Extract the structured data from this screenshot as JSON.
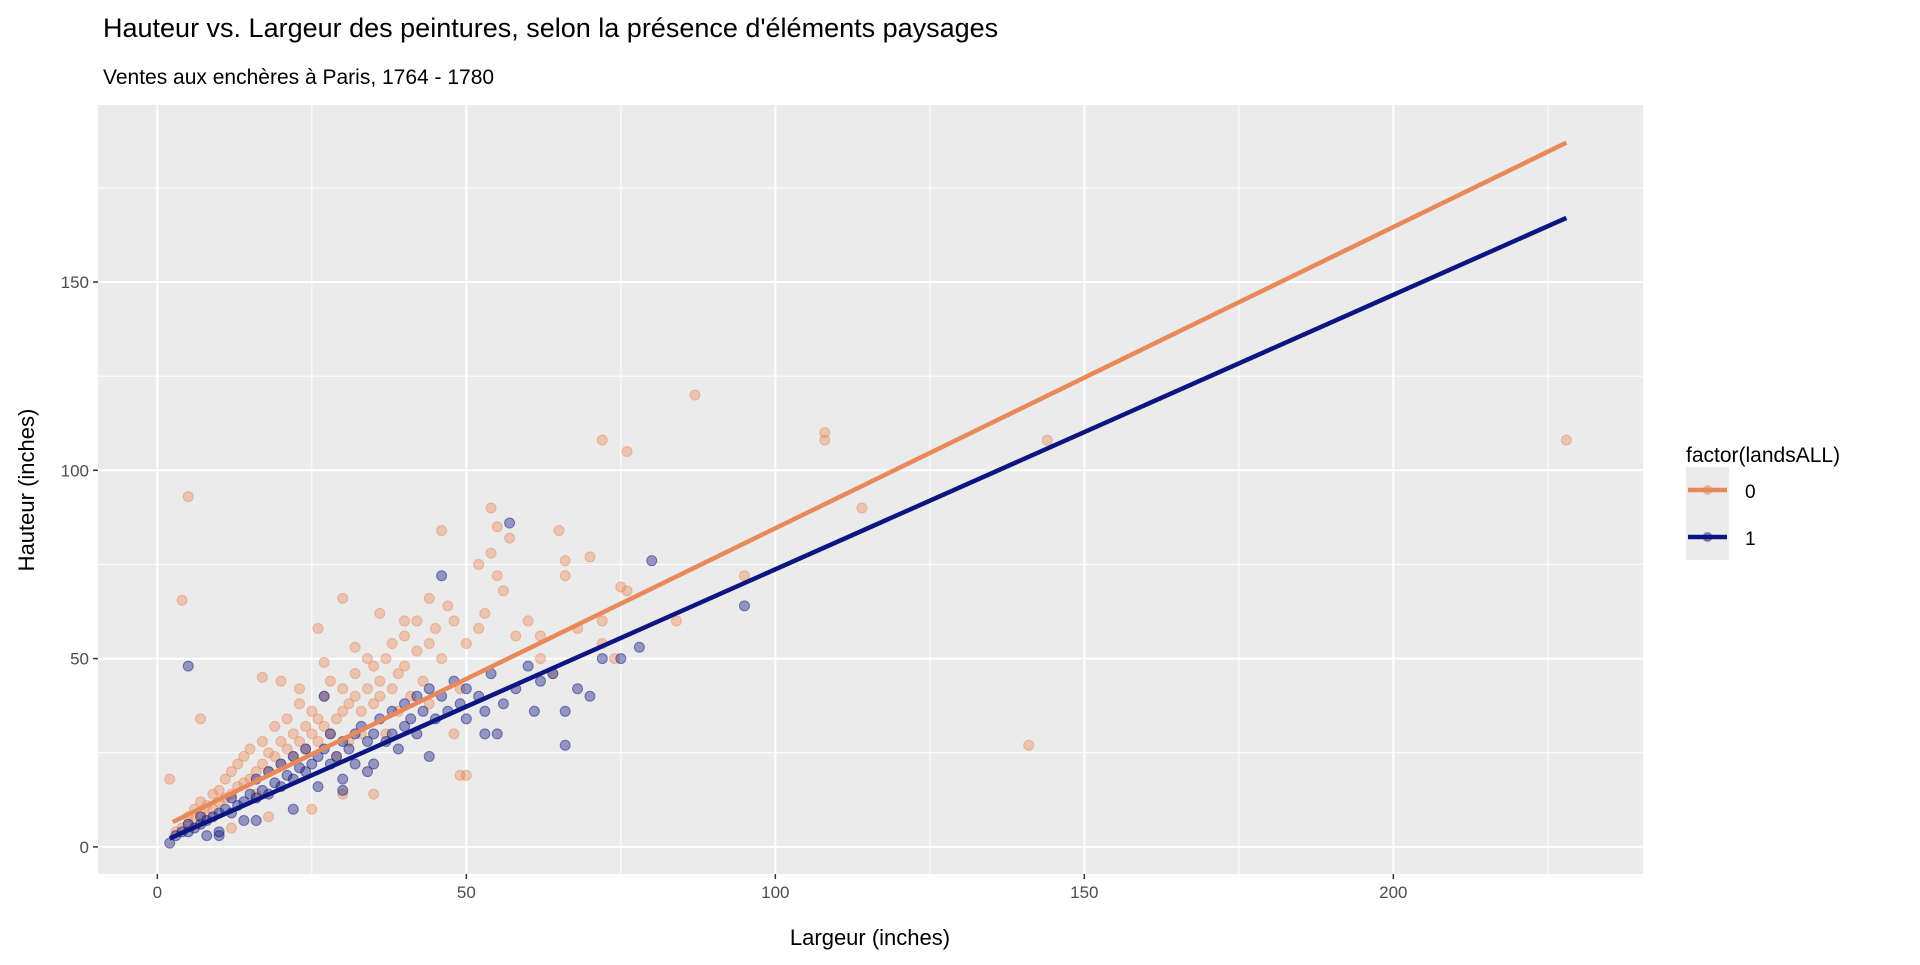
{
  "chart_data": {
    "type": "scatter",
    "title": "Hauteur vs. Largeur des peintures, selon la présence d'éléments paysages",
    "subtitle": "Ventes aux enchères à Paris, 1764 - 1780",
    "xlabel": "Largeur (inches)",
    "ylabel": "Hauteur (inches)",
    "xlim": [
      -9.6,
      240.4
    ],
    "ylim": [
      -7.2,
      197
    ],
    "xticks": [
      0,
      50,
      100,
      150,
      200
    ],
    "yticks": [
      0,
      50,
      100,
      150
    ],
    "grid": true,
    "legend": {
      "title": "factor(landsALL)",
      "placement": "right",
      "entries": [
        "0",
        "1"
      ]
    },
    "series": [
      {
        "name": "0",
        "color": "#E8895A",
        "fit": {
          "x": [
            2.5,
            228
          ],
          "intercept": 4.6,
          "slope": 0.8
        },
        "points": [
          [
            3,
            4
          ],
          [
            4,
            5
          ],
          [
            5,
            6
          ],
          [
            5,
            8
          ],
          [
            6,
            7
          ],
          [
            6,
            10
          ],
          [
            7,
            9
          ],
          [
            7,
            12
          ],
          [
            8,
            8
          ],
          [
            8,
            11
          ],
          [
            9,
            10
          ],
          [
            9,
            14
          ],
          [
            10,
            12
          ],
          [
            10,
            15
          ],
          [
            11,
            13
          ],
          [
            11,
            18
          ],
          [
            12,
            14
          ],
          [
            12,
            20
          ],
          [
            13,
            16
          ],
          [
            13,
            22
          ],
          [
            14,
            17
          ],
          [
            14,
            24
          ],
          [
            15,
            18
          ],
          [
            15,
            26
          ],
          [
            16,
            20
          ],
          [
            16,
            14
          ],
          [
            17,
            22
          ],
          [
            17,
            28
          ],
          [
            18,
            20
          ],
          [
            18,
            25
          ],
          [
            19,
            24
          ],
          [
            19,
            32
          ],
          [
            20,
            22
          ],
          [
            20,
            28
          ],
          [
            21,
            26
          ],
          [
            21,
            34
          ],
          [
            22,
            24
          ],
          [
            22,
            30
          ],
          [
            23,
            28
          ],
          [
            23,
            38
          ],
          [
            24,
            26
          ],
          [
            24,
            32
          ],
          [
            25,
            30
          ],
          [
            25,
            36
          ],
          [
            26,
            28
          ],
          [
            26,
            34
          ],
          [
            27,
            32
          ],
          [
            27,
            40
          ],
          [
            28,
            30
          ],
          [
            28,
            44
          ],
          [
            29,
            34
          ],
          [
            29,
            24
          ],
          [
            30,
            36
          ],
          [
            30,
            42
          ],
          [
            31,
            28
          ],
          [
            31,
            38
          ],
          [
            32,
            40
          ],
          [
            32,
            46
          ],
          [
            33,
            36
          ],
          [
            33,
            30
          ],
          [
            34,
            42
          ],
          [
            34,
            50
          ],
          [
            35,
            38
          ],
          [
            35,
            48
          ],
          [
            36,
            44
          ],
          [
            36,
            40
          ],
          [
            37,
            50
          ],
          [
            37,
            30
          ],
          [
            38,
            42
          ],
          [
            38,
            54
          ],
          [
            39,
            46
          ],
          [
            39,
            36
          ],
          [
            40,
            48
          ],
          [
            40,
            56
          ],
          [
            41,
            40
          ],
          [
            42,
            52
          ],
          [
            42,
            60
          ],
          [
            43,
            44
          ],
          [
            44,
            54
          ],
          [
            44,
            38
          ],
          [
            45,
            58
          ],
          [
            46,
            50
          ],
          [
            46,
            84
          ],
          [
            47,
            64
          ],
          [
            48,
            60
          ],
          [
            48,
            30
          ],
          [
            49,
            42
          ],
          [
            50,
            54
          ],
          [
            50,
            19
          ],
          [
            49,
            19
          ],
          [
            52,
            58
          ],
          [
            53,
            62
          ],
          [
            54,
            78
          ],
          [
            54,
            90
          ],
          [
            55,
            72
          ],
          [
            55,
            85
          ],
          [
            56,
            68
          ],
          [
            57,
            82
          ],
          [
            58,
            56
          ],
          [
            60,
            60
          ],
          [
            62,
            50
          ],
          [
            62,
            56
          ],
          [
            64,
            46
          ],
          [
            65,
            84
          ],
          [
            66,
            76
          ],
          [
            66,
            72
          ],
          [
            68,
            58
          ],
          [
            70,
            77
          ],
          [
            72,
            54
          ],
          [
            72,
            60
          ],
          [
            74,
            50
          ],
          [
            75,
            69
          ],
          [
            76,
            68
          ],
          [
            84,
            60
          ],
          [
            87,
            120
          ],
          [
            72,
            108
          ],
          [
            76,
            105
          ],
          [
            95,
            72
          ],
          [
            108,
            110
          ],
          [
            108,
            108
          ],
          [
            114,
            90
          ],
          [
            144,
            108
          ],
          [
            228,
            108
          ],
          [
            141,
            27
          ],
          [
            5,
            93
          ],
          [
            4,
            65.5
          ],
          [
            2,
            18
          ],
          [
            7,
            34
          ],
          [
            17,
            45
          ],
          [
            26,
            58
          ],
          [
            30,
            66
          ],
          [
            36,
            62
          ],
          [
            40,
            60
          ],
          [
            44,
            66
          ],
          [
            20,
            44
          ],
          [
            23,
            42
          ],
          [
            27,
            49
          ],
          [
            32,
            53
          ],
          [
            52,
            75
          ],
          [
            35,
            14
          ],
          [
            30,
            14
          ],
          [
            18,
            8
          ],
          [
            25,
            10
          ],
          [
            12,
            5
          ]
        ]
      },
      {
        "name": "1",
        "color": "#0D1580",
        "fit": {
          "x": [
            2,
            228
          ],
          "intercept": 0.8,
          "slope": 0.729
        },
        "points": [
          [
            3,
            3
          ],
          [
            4,
            4
          ],
          [
            5,
            4
          ],
          [
            5,
            6
          ],
          [
            6,
            5
          ],
          [
            7,
            6
          ],
          [
            7,
            8
          ],
          [
            8,
            7
          ],
          [
            8,
            3
          ],
          [
            9,
            8
          ],
          [
            10,
            9
          ],
          [
            10,
            4
          ],
          [
            11,
            10
          ],
          [
            12,
            9
          ],
          [
            12,
            13
          ],
          [
            13,
            11
          ],
          [
            14,
            12
          ],
          [
            14,
            7
          ],
          [
            15,
            14
          ],
          [
            16,
            13
          ],
          [
            16,
            18
          ],
          [
            17,
            15
          ],
          [
            18,
            14
          ],
          [
            18,
            20
          ],
          [
            19,
            17
          ],
          [
            20,
            16
          ],
          [
            20,
            22
          ],
          [
            21,
            19
          ],
          [
            22,
            18
          ],
          [
            22,
            24
          ],
          [
            23,
            21
          ],
          [
            24,
            20
          ],
          [
            24,
            26
          ],
          [
            25,
            22
          ],
          [
            26,
            24
          ],
          [
            26,
            16
          ],
          [
            27,
            26
          ],
          [
            28,
            22
          ],
          [
            28,
            30
          ],
          [
            29,
            24
          ],
          [
            30,
            28
          ],
          [
            30,
            18
          ],
          [
            31,
            26
          ],
          [
            32,
            30
          ],
          [
            32,
            22
          ],
          [
            33,
            32
          ],
          [
            34,
            28
          ],
          [
            35,
            30
          ],
          [
            35,
            22
          ],
          [
            36,
            34
          ],
          [
            37,
            28
          ],
          [
            38,
            36
          ],
          [
            38,
            30
          ],
          [
            39,
            26
          ],
          [
            40,
            38
          ],
          [
            40,
            32
          ],
          [
            41,
            34
          ],
          [
            42,
            40
          ],
          [
            42,
            30
          ],
          [
            43,
            36
          ],
          [
            44,
            42
          ],
          [
            45,
            34
          ],
          [
            46,
            40
          ],
          [
            46,
            72
          ],
          [
            47,
            36
          ],
          [
            48,
            44
          ],
          [
            49,
            38
          ],
          [
            50,
            34
          ],
          [
            50,
            42
          ],
          [
            52,
            40
          ],
          [
            53,
            36
          ],
          [
            53,
            30
          ],
          [
            54,
            46
          ],
          [
            55,
            30
          ],
          [
            56,
            38
          ],
          [
            57,
            86
          ],
          [
            58,
            42
          ],
          [
            60,
            48
          ],
          [
            61,
            36
          ],
          [
            62,
            44
          ],
          [
            64,
            46
          ],
          [
            66,
            27
          ],
          [
            66,
            36
          ],
          [
            68,
            42
          ],
          [
            70,
            40
          ],
          [
            72,
            50
          ],
          [
            75,
            50
          ],
          [
            78,
            53
          ],
          [
            80,
            76
          ],
          [
            95,
            64
          ],
          [
            5,
            48
          ],
          [
            2,
            1
          ],
          [
            10,
            3
          ],
          [
            16,
            7
          ],
          [
            22,
            10
          ],
          [
            30,
            15
          ],
          [
            34,
            20
          ],
          [
            27,
            40
          ],
          [
            44,
            24
          ]
        ]
      }
    ]
  }
}
